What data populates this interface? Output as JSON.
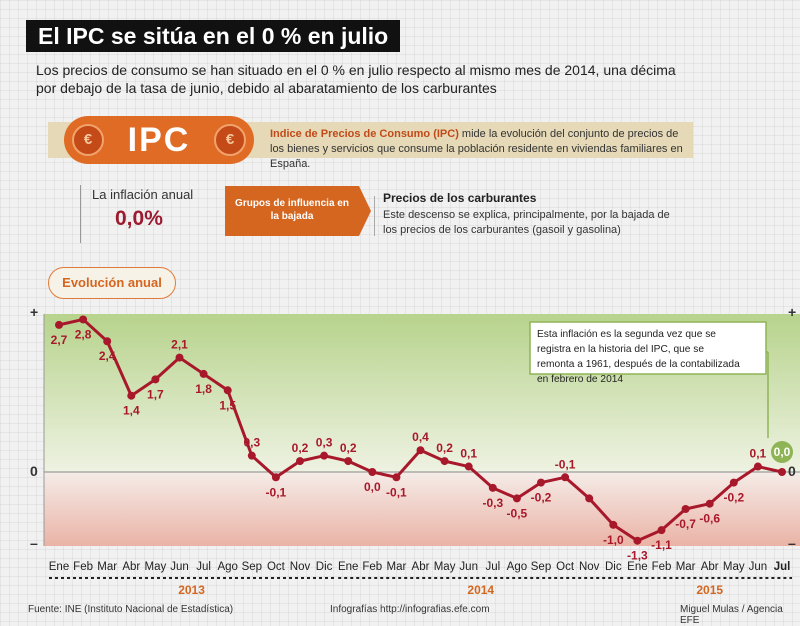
{
  "header": {
    "title": "El IPC se sitúa en el 0 % en julio",
    "subtitle": "Los precios de consumo se han situado en el 0 % en julio respecto al mismo mes de 2014, una décima por debajo de la tasa de junio, debido al abaratamiento de los carburantes"
  },
  "ipc": {
    "badge": "IPC",
    "coin_symbol": "€",
    "desc_bold": "Indice de Precios de Consumo (IPC)",
    "desc_rest": " mide la evolución del conjunto de precios de los bienes y servicios que consume la población residente en viviendas familiares en España."
  },
  "inflation": {
    "label": "La inflación anual",
    "value": "0,0%"
  },
  "groups": {
    "label": "Grupos de influencia en la bajada"
  },
  "carburantes": {
    "title": "Precios de los carburantes",
    "text": "Este descenso se explica, principalmente, por la bajada de los precios de los carburantes (gasoil y gasolina)"
  },
  "evolution_label": "Evolución anual",
  "annotation": "Esta inflación es la segunda vez que se registra en la historia del IPC, que se remonta a 1961, después de la contabilizada en febrero de 2014",
  "footer": {
    "source": "Fuente: INE (Instituto Nacional de Estadística)",
    "web": "Infografías http://infografias.efe.com",
    "credit": "Miguel Mulas / Agencia EFE"
  },
  "colors": {
    "line": "#a8182b",
    "accent": "#e06b24",
    "positive_zone": "#cfe0b0",
    "negative_zone": "#f3d8d2",
    "year": "#d4661f",
    "highlight": "#8fb455"
  },
  "chart_data": {
    "type": "line",
    "categories": [
      "Ene",
      "Feb",
      "Mar",
      "Abr",
      "May",
      "Jun",
      "Jul",
      "Ago",
      "Sep",
      "Oct",
      "Nov",
      "Dic",
      "Ene",
      "Feb",
      "Mar",
      "Abr",
      "May",
      "Jun",
      "Jul",
      "Ago",
      "Sep",
      "Oct",
      "Nov",
      "Dic",
      "Ene",
      "Feb",
      "Mar",
      "Abr",
      "May",
      "Jun",
      "Jul"
    ],
    "years": [
      {
        "label": "2013",
        "start": 0,
        "end": 11
      },
      {
        "label": "2014",
        "start": 12,
        "end": 23
      },
      {
        "label": "2015",
        "start": 24,
        "end": 30
      }
    ],
    "values": [
      2.7,
      2.8,
      2.4,
      1.4,
      1.7,
      2.1,
      1.8,
      1.5,
      0.3,
      -0.1,
      0.2,
      0.3,
      0.2,
      0.0,
      -0.1,
      0.4,
      0.2,
      0.1,
      -0.3,
      -0.5,
      -0.2,
      -0.1,
      -0.5,
      -1.0,
      -1.3,
      -1.1,
      -0.7,
      -0.6,
      -0.2,
      0.1,
      0.0
    ],
    "labels": [
      "2,7",
      "2,8",
      "2,4",
      "1,4",
      "1,7",
      "2,1",
      "1,8",
      "1,5",
      "0,3",
      "-0,1",
      "0,2",
      "0,3",
      "0,2",
      "0,0",
      "-0,1",
      "0,4",
      "0,2",
      "0,1",
      "-0,3",
      "-0,5",
      "-0,2",
      "-0,1",
      null,
      "-1,0",
      "-1,3",
      "-1,1",
      "-0,7",
      "-0,6",
      "-0,2",
      "0,1",
      "0,0"
    ],
    "y_marks": [
      "+",
      "0",
      "–"
    ],
    "ylim": [
      -1.4,
      2.9
    ]
  }
}
